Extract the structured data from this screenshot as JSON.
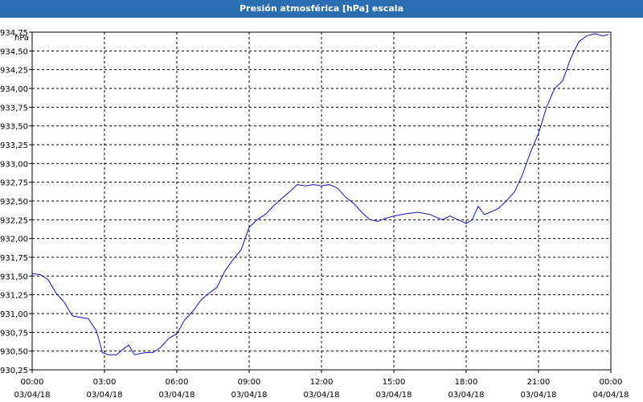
{
  "title": "Presión atmosférica [hPa] escala",
  "chart_data": {
    "type": "line",
    "title": "Presión atmosférica [hPa] escala",
    "ylabel": "hPa",
    "xlabel": "",
    "ylim": [
      930.25,
      934.75
    ],
    "xlim": [
      "03/04/18 00:00",
      "04/04/18 00:00"
    ],
    "grid": true,
    "y_ticks": [
      "934,75",
      "934,50",
      "934,25",
      "934,00",
      "933,75",
      "933,50",
      "933,25",
      "933,00",
      "932,75",
      "932,50",
      "932,25",
      "932,00",
      "931,75",
      "931,50",
      "931,25",
      "931,00",
      "930,75",
      "930,50",
      "930,25"
    ],
    "x_ticks": [
      {
        "time": "00:00",
        "date": "03/04/18"
      },
      {
        "time": "03:00",
        "date": "03/04/18"
      },
      {
        "time": "06:00",
        "date": "03/04/18"
      },
      {
        "time": "09:00",
        "date": "03/04/18"
      },
      {
        "time": "12:00",
        "date": "03/04/18"
      },
      {
        "time": "15:00",
        "date": "03/04/18"
      },
      {
        "time": "18:00",
        "date": "03/04/18"
      },
      {
        "time": "21:00",
        "date": "03/04/18"
      },
      {
        "time": "00:00",
        "date": "04/04/18"
      }
    ],
    "line_color": "#1010c8",
    "series": [
      {
        "x": [
          "03/04/18 00:00",
          "03/04/18 00:20",
          "03/04/18 00:40",
          "03/04/18 01:00",
          "03/04/18 01:20",
          "03/04/18 01:40",
          "03/04/18 02:00",
          "03/04/18 02:20",
          "03/04/18 02:40",
          "03/04/18 02:55",
          "03/04/18 03:10",
          "03/04/18 03:30",
          "03/04/18 03:45",
          "03/04/18 04:00",
          "03/04/18 04:15",
          "03/04/18 04:30",
          "03/04/18 04:45",
          "03/04/18 05:00",
          "03/04/18 05:20",
          "03/04/18 05:40",
          "03/04/18 06:00",
          "03/04/18 06:20",
          "03/04/18 06:40",
          "03/04/18 07:00",
          "03/04/18 07:20",
          "03/04/18 07:40",
          "03/04/18 08:00",
          "03/04/18 08:20",
          "03/04/18 08:40",
          "03/04/18 09:00",
          "03/04/18 09:20",
          "03/04/18 09:40",
          "03/04/18 10:00",
          "03/04/18 10:20",
          "03/04/18 10:40",
          "03/04/18 11:00",
          "03/04/18 11:20",
          "03/04/18 11:40",
          "03/04/18 12:00",
          "03/04/18 12:20",
          "03/04/18 12:40",
          "03/04/18 13:00",
          "03/04/18 13:20",
          "03/04/18 13:40",
          "03/04/18 14:00",
          "03/04/18 14:20",
          "03/04/18 14:40",
          "03/04/18 15:00",
          "03/04/18 15:30",
          "03/04/18 16:00",
          "03/04/18 16:30",
          "03/04/18 17:00",
          "03/04/18 17:20",
          "03/04/18 17:40",
          "03/04/18 18:00",
          "03/04/18 18:15",
          "03/04/18 18:30",
          "03/04/18 18:45",
          "03/04/18 19:00",
          "03/04/18 19:20",
          "03/04/18 19:40",
          "03/04/18 20:00",
          "03/04/18 20:20",
          "03/04/18 20:40",
          "03/04/18 21:00",
          "03/04/18 21:20",
          "03/04/18 21:40",
          "03/04/18 22:00",
          "03/04/18 22:20",
          "03/04/18 22:40",
          "03/04/18 23:00",
          "03/04/18 23:20",
          "03/04/18 23:40",
          "03/04/18 23:55"
        ],
        "values": [
          931.53,
          931.52,
          931.45,
          931.27,
          931.15,
          930.97,
          930.95,
          930.93,
          930.77,
          930.48,
          930.45,
          930.45,
          930.52,
          930.58,
          930.45,
          930.47,
          930.48,
          930.48,
          930.55,
          930.67,
          930.73,
          930.92,
          931.03,
          931.18,
          931.27,
          931.35,
          931.57,
          931.72,
          931.85,
          932.15,
          932.25,
          932.32,
          932.43,
          932.53,
          932.62,
          932.72,
          932.7,
          932.72,
          932.7,
          932.72,
          932.67,
          932.55,
          932.47,
          932.35,
          932.25,
          932.23,
          932.27,
          932.3,
          932.33,
          932.35,
          932.32,
          932.25,
          932.3,
          932.25,
          932.2,
          932.25,
          932.43,
          932.32,
          932.35,
          932.4,
          932.5,
          932.62,
          932.85,
          933.15,
          933.4,
          933.75,
          934.0,
          934.1,
          934.4,
          934.62,
          934.7,
          934.73,
          934.7,
          934.72
        ]
      }
    ]
  }
}
